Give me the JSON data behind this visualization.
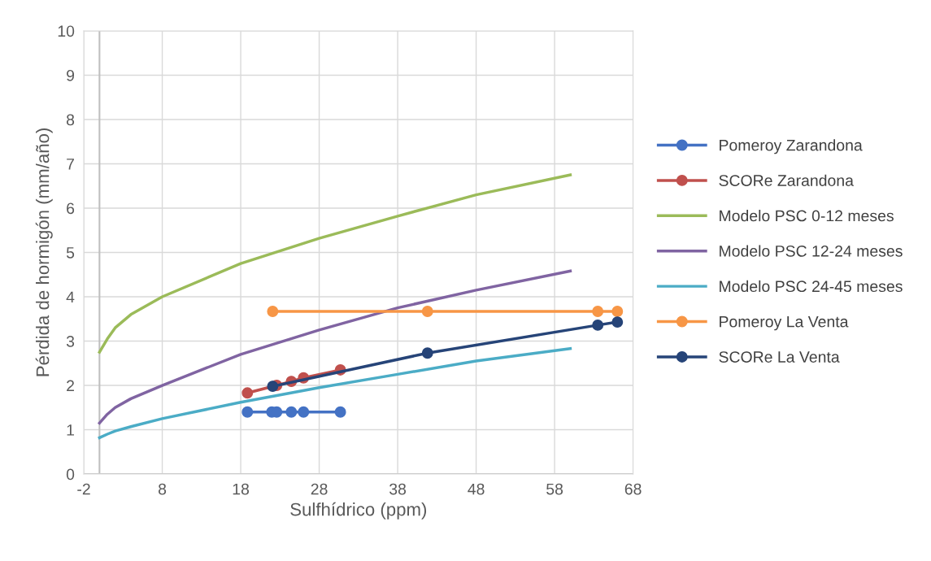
{
  "chart_data": {
    "type": "line",
    "xlabel": "Sulfhídrico (ppm)",
    "ylabel": "Pérdida de hormigón (mm/año)",
    "xlim": [
      -2,
      68
    ],
    "xticks": [
      -2,
      8,
      18,
      28,
      38,
      48,
      58,
      68
    ],
    "ylim": [
      0,
      10
    ],
    "yticks": [
      0,
      1,
      2,
      3,
      4,
      5,
      6,
      7,
      8,
      9,
      10
    ],
    "grid": true,
    "legend": "right",
    "series": [
      {
        "name": "Pomeroy Zarandona",
        "color": "#4472c4",
        "marker": "circle",
        "x": [
          18.85,
          21.96,
          22.58,
          24.45,
          26.0,
          30.7
        ],
        "values": [
          1.4,
          1.4,
          1.4,
          1.4,
          1.4,
          1.4
        ]
      },
      {
        "name": "SCORe Zarandona",
        "color": "#c0504d",
        "marker": "circle",
        "x": [
          18.85,
          22.58,
          24.45,
          26.0,
          30.7
        ],
        "values": [
          1.83,
          2.0,
          2.09,
          2.17,
          2.35
        ]
      },
      {
        "name": "Modelo PSC 0-12 meses",
        "color": "#9bbb59",
        "marker": "none",
        "x": [
          0,
          1,
          2,
          4,
          8,
          18,
          28,
          38,
          48,
          60
        ],
        "values": [
          2.75,
          3.05,
          3.3,
          3.6,
          4.0,
          4.75,
          5.32,
          5.82,
          6.3,
          6.75
        ]
      },
      {
        "name": "Modelo PSC 12-24 meses",
        "color": "#8064a2",
        "marker": "none",
        "x": [
          0,
          1,
          2,
          4,
          8,
          18,
          28,
          38,
          48,
          60
        ],
        "values": [
          1.15,
          1.35,
          1.5,
          1.7,
          2.0,
          2.7,
          3.25,
          3.75,
          4.15,
          4.58
        ]
      },
      {
        "name": "Modelo PSC 24-45 meses",
        "color": "#4bacc6",
        "marker": "none",
        "x": [
          0,
          1,
          2,
          4,
          8,
          18,
          28,
          38,
          48,
          60
        ],
        "values": [
          0.82,
          0.9,
          0.97,
          1.07,
          1.25,
          1.62,
          1.95,
          2.25,
          2.55,
          2.83
        ]
      },
      {
        "name": "Pomeroy La Venta",
        "color": "#f79646",
        "marker": "circle",
        "x": [
          22.07,
          41.8,
          63.5,
          66.0
        ],
        "values": [
          3.67,
          3.67,
          3.67,
          3.67
        ]
      },
      {
        "name": "SCORe La Venta",
        "color": "#264478",
        "marker": "circle",
        "x": [
          22.07,
          41.8,
          63.5,
          66.0
        ],
        "values": [
          1.98,
          2.73,
          3.36,
          3.43
        ]
      }
    ]
  }
}
